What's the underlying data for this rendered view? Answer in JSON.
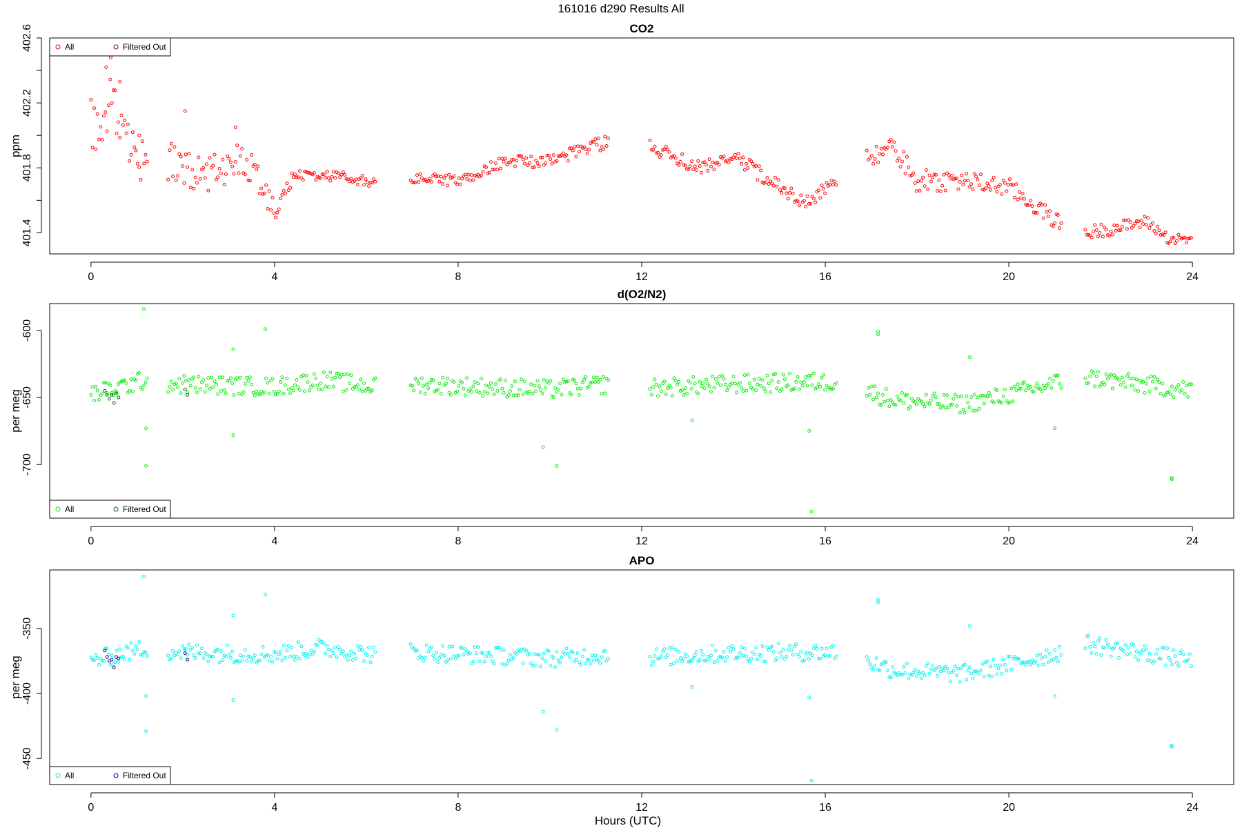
{
  "figure_title": "161016   d290   Results All",
  "xlabel": "Hours (UTC)",
  "chart_data": [
    {
      "type": "scatter",
      "title": "CO2",
      "ylabel": "ppm",
      "xlim": [
        -0.9,
        24.9
      ],
      "ylim": [
        401.27,
        402.6
      ],
      "x_ticks": [
        0,
        4,
        8,
        12,
        16,
        20,
        24
      ],
      "y_ticks": [
        401.4,
        401.8,
        402.2,
        402.6
      ],
      "y_ticks_minor": [
        401.6,
        402.0,
        402.4
      ],
      "legend": {
        "position": "top-left",
        "entries": [
          "All",
          "Filtered Out"
        ]
      },
      "color_all": "#ff0000",
      "color_filtered": "#8b0000",
      "gaps": [
        [
          1.25,
          1.65
        ],
        [
          6.2,
          6.95
        ],
        [
          11.3,
          12.15
        ],
        [
          16.25,
          16.9
        ],
        [
          21.15,
          21.65
        ]
      ],
      "trend": [
        [
          0,
          402.05
        ],
        [
          0.4,
          402.2
        ],
        [
          1.2,
          401.8
        ],
        [
          1.7,
          401.85
        ],
        [
          2.5,
          401.75
        ],
        [
          3.3,
          401.85
        ],
        [
          3.7,
          401.72
        ],
        [
          4.0,
          401.52
        ],
        [
          4.4,
          401.75
        ],
        [
          5.5,
          401.75
        ],
        [
          6.2,
          401.7
        ],
        [
          7.0,
          401.74
        ],
        [
          8.0,
          401.72
        ],
        [
          9.0,
          401.84
        ],
        [
          10.0,
          401.84
        ],
        [
          11.0,
          401.94
        ],
        [
          11.3,
          401.96
        ],
        [
          12.2,
          401.93
        ],
        [
          13.2,
          401.8
        ],
        [
          14.0,
          401.87
        ],
        [
          14.8,
          401.72
        ],
        [
          15.6,
          401.58
        ],
        [
          16.25,
          401.72
        ],
        [
          16.9,
          401.86
        ],
        [
          17.5,
          401.92
        ],
        [
          18.0,
          401.72
        ],
        [
          19.0,
          401.72
        ],
        [
          20.0,
          401.68
        ],
        [
          21.15,
          401.45
        ],
        [
          21.7,
          401.4
        ],
        [
          22.5,
          401.44
        ],
        [
          23.0,
          401.47
        ],
        [
          23.5,
          401.36
        ],
        [
          24.0,
          401.36
        ]
      ],
      "noise": [
        [
          0,
          0.18
        ],
        [
          1.25,
          0.16
        ],
        [
          1.7,
          0.12
        ],
        [
          3.5,
          0.1
        ],
        [
          4.1,
          0.06
        ],
        [
          4.6,
          0.03
        ],
        [
          16.9,
          0.05
        ],
        [
          18.0,
          0.07
        ],
        [
          21.0,
          0.05
        ],
        [
          24.0,
          0.03
        ]
      ],
      "outliers": [
        [
          0.33,
          402.42
        ],
        [
          0.43,
          402.48
        ],
        [
          0.63,
          402.33
        ],
        [
          1.05,
          402.0
        ],
        [
          2.05,
          402.15
        ],
        [
          3.15,
          402.05
        ]
      ],
      "filtered_out": []
    },
    {
      "type": "scatter",
      "title": "d(O2/N2)",
      "ylabel": "per meg",
      "xlim": [
        -0.9,
        24.9
      ],
      "ylim": [
        -740,
        -580
      ],
      "x_ticks": [
        0,
        4,
        8,
        12,
        16,
        20,
        24
      ],
      "y_ticks": [
        -700,
        -650,
        -600
      ],
      "y_ticks_minor": [],
      "legend": {
        "position": "bottom-left",
        "entries": [
          "All",
          "Filtered Out"
        ]
      },
      "color_all": "#00ee00",
      "color_filtered": "#006400",
      "gaps": [
        [
          1.25,
          1.65
        ],
        [
          6.2,
          6.95
        ],
        [
          11.3,
          12.15
        ],
        [
          16.25,
          16.9
        ],
        [
          21.15,
          21.65
        ]
      ],
      "trend": [
        [
          0,
          -648
        ],
        [
          1.2,
          -637
        ],
        [
          1.7,
          -640
        ],
        [
          4.0,
          -642
        ],
        [
          5.0,
          -637
        ],
        [
          6.2,
          -642
        ],
        [
          7.0,
          -640
        ],
        [
          10.0,
          -644
        ],
        [
          11.3,
          -640
        ],
        [
          12.2,
          -643
        ],
        [
          14.0,
          -640
        ],
        [
          16.25,
          -638
        ],
        [
          16.9,
          -645
        ],
        [
          17.5,
          -652
        ],
        [
          19.0,
          -655
        ],
        [
          20.0,
          -648
        ],
        [
          21.15,
          -638
        ],
        [
          21.7,
          -635
        ],
        [
          24.0,
          -645
        ]
      ],
      "noise": [
        [
          0,
          7
        ],
        [
          24,
          7
        ]
      ],
      "outliers": [
        [
          1.15,
          -584
        ],
        [
          1.2,
          -673
        ],
        [
          1.2,
          -701
        ],
        [
          3.1,
          -614
        ],
        [
          3.1,
          -678
        ],
        [
          3.8,
          -599
        ],
        [
          9.85,
          -687
        ],
        [
          10.15,
          -701
        ],
        [
          13.1,
          -667
        ],
        [
          15.65,
          -675
        ],
        [
          15.7,
          -735
        ],
        [
          17.15,
          -601
        ],
        [
          17.15,
          -603
        ],
        [
          19.15,
          -620
        ],
        [
          21.0,
          -673
        ],
        [
          23.55,
          -710
        ],
        [
          23.55,
          -711
        ]
      ],
      "filtered_out": [
        [
          0.3,
          -645
        ],
        [
          0.35,
          -648
        ],
        [
          0.4,
          -651
        ],
        [
          0.45,
          -648
        ],
        [
          0.5,
          -654
        ],
        [
          0.55,
          -647
        ],
        [
          0.6,
          -650
        ],
        [
          2.05,
          -644
        ],
        [
          2.1,
          -648
        ]
      ]
    },
    {
      "type": "scatter",
      "title": "APO",
      "ylabel": "per meg",
      "xlim": [
        -0.9,
        24.9
      ],
      "ylim": [
        -470,
        -305
      ],
      "x_ticks": [
        0,
        4,
        8,
        12,
        16,
        20,
        24
      ],
      "y_ticks": [
        -450,
        -400,
        -350
      ],
      "y_ticks_minor": [],
      "legend": {
        "position": "bottom-left",
        "entries": [
          "All",
          "Filtered Out"
        ]
      },
      "color_all": "#00eeee",
      "color_filtered": "#00008b",
      "gaps": [
        [
          1.25,
          1.65
        ],
        [
          6.2,
          6.95
        ],
        [
          11.3,
          12.15
        ],
        [
          16.25,
          16.9
        ],
        [
          21.15,
          21.65
        ]
      ],
      "trend": [
        [
          0,
          -375
        ],
        [
          1.2,
          -365
        ],
        [
          1.7,
          -368
        ],
        [
          4.0,
          -370
        ],
        [
          5.0,
          -365
        ],
        [
          6.2,
          -370
        ],
        [
          7.0,
          -368
        ],
        [
          10.0,
          -373
        ],
        [
          11.3,
          -370
        ],
        [
          12.2,
          -372
        ],
        [
          14.0,
          -369
        ],
        [
          16.25,
          -368
        ],
        [
          16.9,
          -375
        ],
        [
          17.5,
          -382
        ],
        [
          19.0,
          -385
        ],
        [
          20.0,
          -378
        ],
        [
          21.15,
          -368
        ],
        [
          21.7,
          -362
        ],
        [
          24.0,
          -375
        ]
      ],
      "noise": [
        [
          0,
          7
        ],
        [
          24,
          7
        ]
      ],
      "outliers": [
        [
          1.15,
          -310
        ],
        [
          1.2,
          -402
        ],
        [
          1.2,
          -429
        ],
        [
          3.1,
          -340
        ],
        [
          3.1,
          -405
        ],
        [
          3.8,
          -324
        ],
        [
          9.85,
          -414
        ],
        [
          10.15,
          -428
        ],
        [
          13.1,
          -395
        ],
        [
          15.65,
          -403
        ],
        [
          15.7,
          -467
        ],
        [
          17.15,
          -328
        ],
        [
          17.15,
          -330
        ],
        [
          19.15,
          -348
        ],
        [
          21.0,
          -402
        ],
        [
          23.55,
          -440
        ],
        [
          23.55,
          -441
        ]
      ],
      "filtered_out": [
        [
          0.3,
          -367
        ],
        [
          0.35,
          -372
        ],
        [
          0.4,
          -375
        ],
        [
          0.45,
          -374
        ],
        [
          0.5,
          -380
        ],
        [
          0.55,
          -372
        ],
        [
          0.6,
          -373
        ],
        [
          2.05,
          -369
        ],
        [
          2.1,
          -374
        ]
      ]
    }
  ]
}
